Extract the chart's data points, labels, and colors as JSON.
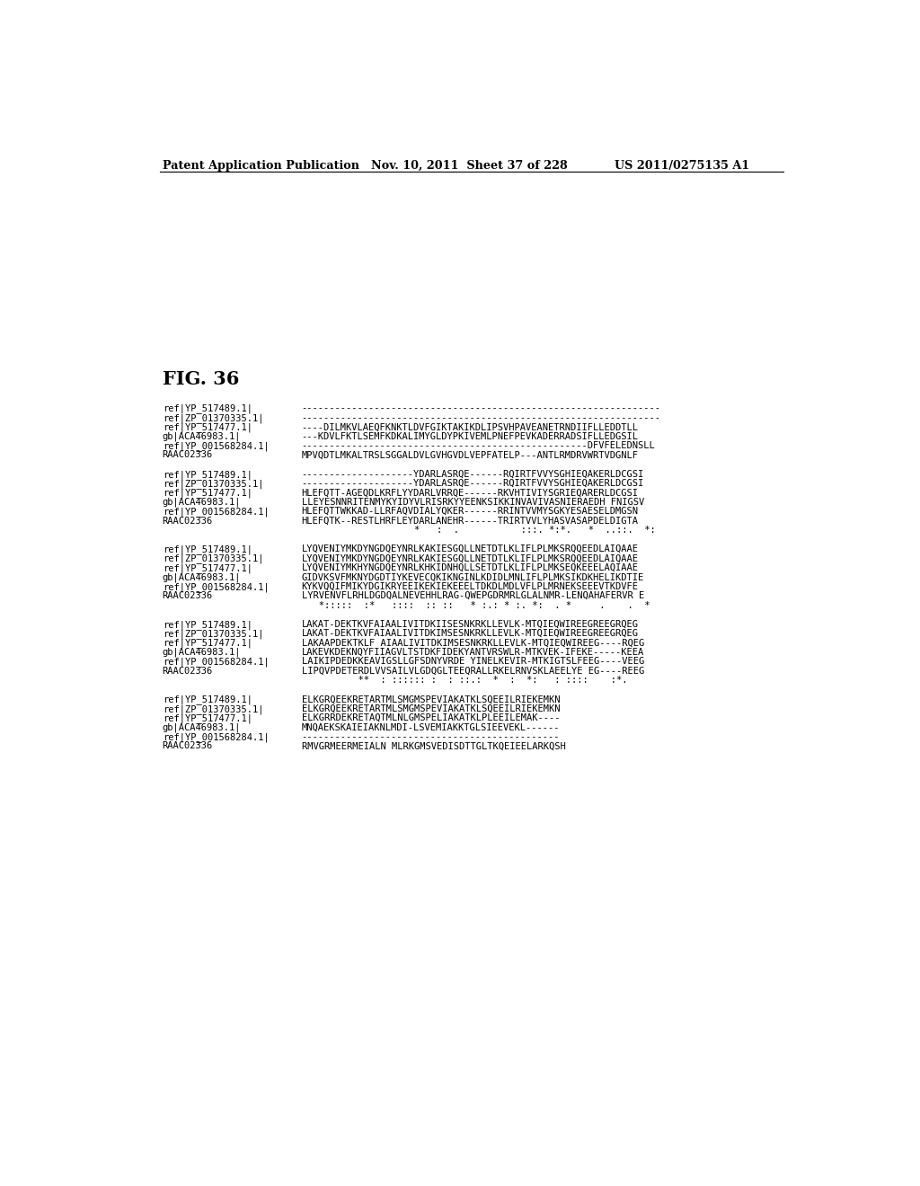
{
  "header_left": "Patent Application Publication",
  "header_mid": "Nov. 10, 2011  Sheet 37 of 228",
  "header_right": "US 2011/0275135 A1",
  "fig_label": "FIG. 36",
  "background_color": "#ffffff",
  "text_color": "#000000",
  "sequences": [
    {
      "block": 1,
      "lines": [
        [
          "ref|YP_517489.1|",
          "----------------------------------------------------------------"
        ],
        [
          "ref|ZP_01370335.1|",
          "----------------------------------------------------------------"
        ],
        [
          "ref|YP_517477.1|",
          "----DILMKVLAEQFKNKTLDVFGIKTAKIKDLIPSVHPAVEANETRNDIIFLLEDDTLL"
        ],
        [
          "gb|ACA46983.1|",
          "---KDVLFKTLSEMFKDKALIMYGLDYPKIVEMLPNEFPEVKADERRADSIFLLEDGSIL"
        ],
        [
          "ref|YP_001568284.1|",
          "---------------------------------------------------DFVFELEDNSLL"
        ],
        [
          "RAAC02336",
          "MPVQDTLMKALTRSLSGGALDVLGVHGVDLVEPFATELP---ANTLRMDRVWRTVDGNLF"
        ]
      ]
    },
    {
      "block": 2,
      "lines": [
        [
          "ref|YP_517489.1|",
          "--------------------YDARLASRQE------RQIRTFVVYSGHIEQAKERLDCGSI"
        ],
        [
          "ref|ZP_01370335.1|",
          "--------------------YDARLASRQE------RQIRTFVVYSGHIEQAKERLDCGSI"
        ],
        [
          "ref|YP_517477.1|",
          "HLEFQTT-AGEQDLKRFLYYDARLVRRQE------RKVHTIVIYSGRIEQARERLDCGSI"
        ],
        [
          "gb|ACA46983.1|",
          "LLEYESNNRITENMYKYIDYVLRISRKYYEENKSIKKINVAVIVASNIERAEDH FNIGSV"
        ],
        [
          "ref|YP_001568284.1|",
          "HLEFQTTWKKAD-LLRFAQVDIALYQKER------RRINTVVMYSGKYESAESELDMGSN"
        ],
        [
          "RAAC02336",
          "HLEFQTK--RESTLHRFLEYDARLANEHR------TRIRTVVLYHASVASAPDELDIGTA"
        ],
        [
          "",
          "                    *   :  .           :::. *:*.   *  ..::.  *:"
        ]
      ]
    },
    {
      "block": 3,
      "lines": [
        [
          "ref|YP_517489.1|",
          "LYQVENIYMKDYNGDQEYNRLKAKIESGQLLNETDTLKLIFLPLMKSRQQEEDLAIQAAE"
        ],
        [
          "ref|ZP_01370335.1|",
          "LYQVENIYMKDYNGDQEYNRLKAKIESGQLLNETDTLKLIFLPLMKSRQQEEDLAIQAAE"
        ],
        [
          "ref|YP_517477.1|",
          "LYQVENIYMKHYNGDQEYNRLKHKIDNHQLLSETDTLKLIFLPLMKSEQKEEELAQIAAE"
        ],
        [
          "gb|ACA46983.1|",
          "GIDVKSVFMKNYDGDTIYKEVECQKIKNGINLKDIDLMNLIFLPLMKSIKDKHELIKDTIE"
        ],
        [
          "ref|YP_001568284.1|",
          "KYKVQQIFMIKYDGIKRYEEIKEKIEKEEELTDKDLMDLVFLPLMRNEKSEEEVTKDVFE"
        ],
        [
          "RAAC02336",
          "LYRVENVFLRHLDGDQALNEVEHHLRAG-QWEPGDRMRLGLALNMR-LENQAHAFERVR E"
        ],
        [
          "",
          "   *:::::  :*   ::::  :: ::   * :.: * :. *:  . *     .    .  *"
        ]
      ]
    },
    {
      "block": 4,
      "lines": [
        [
          "ref|YP_517489.1|",
          "LAKAT-DEKTKVFAIAALIVITDKIISESNKRKLLEVLK-MTQIEQWIREEGREEGRQEG"
        ],
        [
          "ref|ZP_01370335.1|",
          "LAKAT-DEKTKVFAIAALIVITDKIMSESNKRKLLEVLK-MTQIEQWIREEGREEGRQEG"
        ],
        [
          "ref|YP_517477.1|",
          "LAKAAPDEKTKLF AIAALIVITDKIMSESNKRKLLEVLK-MTQIEQWIREEG----RQEG"
        ],
        [
          "gb|ACA46983.1|",
          "LAKEVKDEKNQYFIIAGVLTSTDKFIDEKYANTVRSWLR-MTKVEK-IFEKE-----KEEA"
        ],
        [
          "ref|YP_001568284.1|",
          "LAIKIPDEDKKEAVIGSLLGFSDNYVRDE YINELKEVIR-MTKIGTSLFEEG----VEEG"
        ],
        [
          "RAAC02336",
          "LIPQVPDETERDLVVSAILVLGDQGLTEEQRALLRKELRNVSKLAEELYE EG----REEG"
        ],
        [
          "",
          "          **  : :::::: :  : ::.:  *  :  *:   : ::::    :*."
        ]
      ]
    },
    {
      "block": 5,
      "lines": [
        [
          "ref|YP_517489.1|",
          "ELKGRQEEKRETARTMLSMGMSPEVIAKATKLSQEEILRIEKEMKN"
        ],
        [
          "ref|ZP_01370335.1|",
          "ELKGRQEEKRETARTMLSMGMSPEVIAKATKLSQEEILRIEKEMKN"
        ],
        [
          "ref|YP_517477.1|",
          "ELKGRRDEKRETAQTMLNLGMSPELIAKATKLPLEEILEMAK----"
        ],
        [
          "gb|ACA46983.1|",
          "MNQAEKSKAIEIAKNLMDI-LSVEMIAKKTGLSIEEVEKL------"
        ],
        [
          "ref|YP_001568284.1|",
          "----------------------------------------------"
        ],
        [
          "RAAC02336",
          "RMVGRMEERMEIALN MLRKGMSVEDISDTTGLTKQEIEELARKQSH"
        ]
      ]
    }
  ]
}
